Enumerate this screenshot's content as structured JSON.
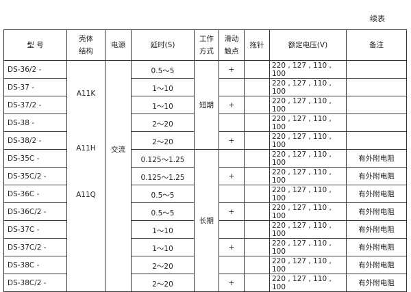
{
  "caption": "续表",
  "headers": {
    "model": "型 号",
    "housing_1": "壳体",
    "housing_2": "结构",
    "power": "电源",
    "delay": "延时(S)",
    "mode_1": "工作",
    "mode_2": "方式",
    "slide_1": "滑动",
    "slide_2": "触点",
    "pointer": "拖针",
    "voltage": "额定电压(V)",
    "remark": "备注"
  },
  "housing_labels": [
    "A11K",
    "A11H",
    "A11Q"
  ],
  "power_label": "交流",
  "mode_labels": [
    "短期",
    "长期"
  ],
  "rows": [
    {
      "model": "DS-36/2 -",
      "delay": "0.5～5",
      "slide": "+",
      "voltage": "220 , 127 , 110 , 100",
      "remark": ""
    },
    {
      "model": "DS-37  -",
      "delay": "1～10",
      "slide": "",
      "voltage": "220 , 127 , 110 , 100",
      "remark": ""
    },
    {
      "model": "DS-37/2 -",
      "delay": "1～10",
      "slide": "+",
      "voltage": "220 , 127 , 110 , 100",
      "remark": ""
    },
    {
      "model": "DS-38  -",
      "delay": "2～20",
      "slide": "",
      "voltage": "220 , 127 , 110 , 100",
      "remark": ""
    },
    {
      "model": "DS-38/2 -",
      "delay": "2～20",
      "slide": "+",
      "voltage": "220 , 127 , 110 , 100",
      "remark": ""
    },
    {
      "model": "DS-35C  -",
      "delay": "0.125～1.25",
      "slide": "",
      "voltage": "220 , 127 , 110 , 100",
      "remark": "有外附电阻"
    },
    {
      "model": "DS-35C/2 -",
      "delay": "0.125～1.25",
      "slide": "+",
      "voltage": "220 , 127 , 110 , 100",
      "remark": "有外附电阻"
    },
    {
      "model": "DS-36C  -",
      "delay": "0.5～5",
      "slide": "",
      "voltage": "220 , 127 , 110 , 100",
      "remark": "有外附电阻"
    },
    {
      "model": "DS-36C/2 -",
      "delay": "0.5～5",
      "slide": "+",
      "voltage": "220 , 127 , 110 , 100",
      "remark": "有外附电阻"
    },
    {
      "model": "DS-37C  -",
      "delay": "1～10",
      "slide": "",
      "voltage": "220 , 127 , 110 , 100",
      "remark": "有外附电阻"
    },
    {
      "model": "DS-37C/2 -",
      "delay": "1～10",
      "slide": "+",
      "voltage": "220 , 127 , 110 , 100",
      "remark": "有外附电阻"
    },
    {
      "model": "DS-38C  -",
      "delay": "2～20",
      "slide": "",
      "voltage": "220 , 127 , 110 , 100",
      "remark": "有外附电阻"
    },
    {
      "model": "DS-38C/2  -",
      "delay": "2～20",
      "slide": "+",
      "voltage": "220 , 127 , 110 , 100",
      "remark": "有外附电阻"
    }
  ]
}
